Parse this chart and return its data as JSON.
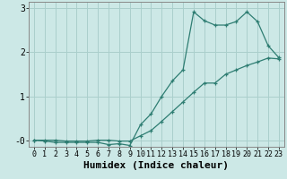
{
  "title": "",
  "xlabel": "Humidex (Indice chaleur)",
  "background_color": "#cce8e6",
  "line_color": "#2e7d72",
  "grid_color": "#aacfcc",
  "xlim": [
    -0.5,
    23.5
  ],
  "ylim": [
    -0.15,
    3.15
  ],
  "yticks": [
    0,
    1,
    2,
    3
  ],
  "ytick_labels": [
    "-0",
    "1",
    "2",
    "3"
  ],
  "xticks": [
    0,
    1,
    2,
    3,
    4,
    5,
    6,
    7,
    8,
    9,
    10,
    11,
    12,
    13,
    14,
    15,
    16,
    17,
    18,
    19,
    20,
    21,
    22,
    23
  ],
  "series1_x": [
    0,
    1,
    2,
    3,
    4,
    5,
    6,
    7,
    8,
    9,
    10,
    11,
    12,
    13,
    14,
    15,
    16,
    17,
    18,
    19,
    20,
    21,
    22,
    23
  ],
  "series1_y": [
    0.0,
    0.0,
    0.0,
    -0.02,
    -0.02,
    -0.02,
    -0.0,
    -0.0,
    -0.02,
    -0.02,
    0.1,
    0.22,
    0.43,
    0.65,
    0.87,
    1.09,
    1.3,
    1.3,
    1.5,
    1.6,
    1.7,
    1.78,
    1.87,
    1.85
  ],
  "series2_x": [
    0,
    1,
    2,
    3,
    4,
    5,
    6,
    7,
    8,
    9,
    10,
    11,
    12,
    13,
    14,
    15,
    16,
    17,
    18,
    19,
    20,
    21,
    22,
    23
  ],
  "series2_y": [
    0.0,
    -0.02,
    -0.05,
    -0.05,
    -0.05,
    -0.05,
    -0.05,
    -0.1,
    -0.08,
    -0.12,
    0.35,
    0.6,
    1.0,
    1.35,
    1.6,
    2.92,
    2.72,
    2.62,
    2.62,
    2.7,
    2.92,
    2.7,
    2.15,
    1.88
  ],
  "font_family": "monospace",
  "font_size": 7,
  "marker": "+"
}
